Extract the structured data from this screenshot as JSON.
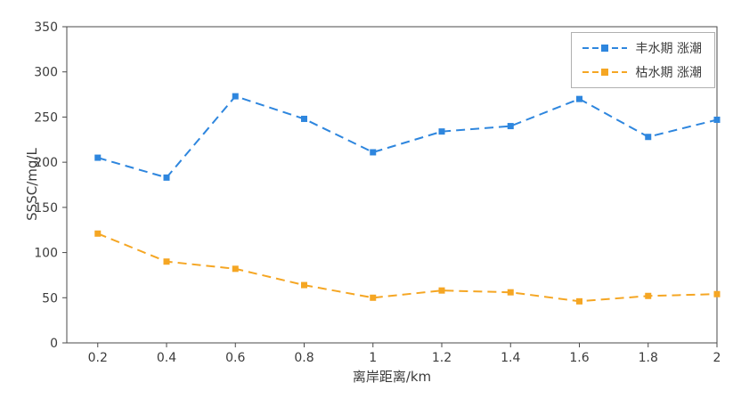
{
  "chart_data": {
    "type": "line",
    "xlabel": "离岸距离/km",
    "ylabel": "SSSC/mg/L",
    "x": [
      0.2,
      0.4,
      0.6,
      0.8,
      1,
      1.2,
      1.4,
      1.6,
      1.8,
      2
    ],
    "x_tick_labels": [
      "0.2",
      "0.4",
      "0.6",
      "0.8",
      "1",
      "1.2",
      "1.4",
      "1.6",
      "1.8",
      "2"
    ],
    "y_tick_labels": [
      "0",
      "50",
      "100",
      "150",
      "200",
      "250",
      "300",
      "350"
    ],
    "ylim": [
      0,
      350
    ],
    "xlim": [
      0.11,
      2
    ],
    "grid": false,
    "line_style": "dashed",
    "marker": "square",
    "legend_position": "top-right",
    "axis_color": "#4a4a4a",
    "series": [
      {
        "name": "丰水期 涨潮",
        "color": "#2E86DE",
        "values": [
          205,
          183,
          273,
          248,
          211,
          234,
          240,
          270,
          228,
          247
        ]
      },
      {
        "name": "枯水期 涨潮",
        "color": "#F5A623",
        "values": [
          121,
          90,
          82,
          64,
          50,
          58,
          56,
          46,
          52,
          54
        ]
      }
    ]
  }
}
